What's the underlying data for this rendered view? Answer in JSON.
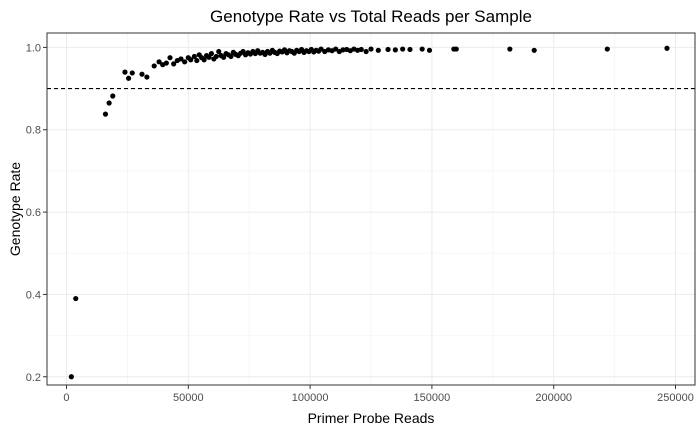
{
  "chart_data": {
    "type": "scatter",
    "title": "Genotype Rate vs Total Reads per Sample",
    "xlabel": "Primer Probe Reads",
    "ylabel": "Genotype Rate",
    "xlim": [
      -8000,
      258000
    ],
    "ylim": [
      0.18,
      1.035
    ],
    "xticks": [
      0,
      50000,
      100000,
      150000,
      200000,
      250000
    ],
    "xtick_labels": [
      "0",
      "50000",
      "100000",
      "150000",
      "200000",
      "250000"
    ],
    "yticks": [
      0.2,
      0.4,
      0.6,
      0.8,
      1.0
    ],
    "ytick_labels": [
      "0.2",
      "0.4",
      "0.6",
      "0.8",
      "1.0"
    ],
    "grid": true,
    "reference_line": {
      "y": 0.9,
      "style": "dashed"
    },
    "series": [
      {
        "points": [
          [
            2000,
            0.2
          ],
          [
            3800,
            0.39
          ],
          [
            16000,
            0.838
          ],
          [
            17500,
            0.865
          ],
          [
            19000,
            0.882
          ],
          [
            24000,
            0.94
          ],
          [
            25500,
            0.925
          ],
          [
            27000,
            0.938
          ],
          [
            31000,
            0.935
          ],
          [
            33000,
            0.928
          ],
          [
            36000,
            0.955
          ],
          [
            38000,
            0.965
          ],
          [
            39500,
            0.958
          ],
          [
            41000,
            0.962
          ],
          [
            42500,
            0.975
          ],
          [
            44000,
            0.96
          ],
          [
            45500,
            0.968
          ],
          [
            47000,
            0.972
          ],
          [
            48500,
            0.965
          ],
          [
            50000,
            0.975
          ],
          [
            51000,
            0.97
          ],
          [
            52500,
            0.978
          ],
          [
            53500,
            0.968
          ],
          [
            54500,
            0.982
          ],
          [
            55500,
            0.975
          ],
          [
            56500,
            0.97
          ],
          [
            57500,
            0.98
          ],
          [
            58500,
            0.976
          ],
          [
            59500,
            0.985
          ],
          [
            60500,
            0.972
          ],
          [
            61500,
            0.978
          ],
          [
            62500,
            0.99
          ],
          [
            63500,
            0.98
          ],
          [
            64500,
            0.976
          ],
          [
            65500,
            0.985
          ],
          [
            66500,
            0.982
          ],
          [
            67500,
            0.978
          ],
          [
            68500,
            0.988
          ],
          [
            69500,
            0.983
          ],
          [
            70500,
            0.98
          ],
          [
            71500,
            0.986
          ],
          [
            72500,
            0.99
          ],
          [
            73500,
            0.982
          ],
          [
            74500,
            0.987
          ],
          [
            75500,
            0.984
          ],
          [
            76500,
            0.99
          ],
          [
            77500,
            0.985
          ],
          [
            78500,
            0.992
          ],
          [
            79500,
            0.986
          ],
          [
            80500,
            0.988
          ],
          [
            81500,
            0.983
          ],
          [
            82500,
            0.99
          ],
          [
            83500,
            0.986
          ],
          [
            84500,
            0.993
          ],
          [
            85500,
            0.988
          ],
          [
            86500,
            0.985
          ],
          [
            87500,
            0.991
          ],
          [
            88500,
            0.989
          ],
          [
            89500,
            0.994
          ],
          [
            90500,
            0.987
          ],
          [
            91500,
            0.992
          ],
          [
            92500,
            0.99
          ],
          [
            93500,
            0.986
          ],
          [
            94500,
            0.993
          ],
          [
            95500,
            0.99
          ],
          [
            96500,
            0.995
          ],
          [
            97500,
            0.988
          ],
          [
            98500,
            0.992
          ],
          [
            99500,
            0.99
          ],
          [
            100500,
            0.995
          ],
          [
            101500,
            0.989
          ],
          [
            102500,
            0.993
          ],
          [
            103500,
            0.991
          ],
          [
            104500,
            0.996
          ],
          [
            106000,
            0.99
          ],
          [
            107500,
            0.994
          ],
          [
            109000,
            0.992
          ],
          [
            110500,
            0.996
          ],
          [
            112000,
            0.99
          ],
          [
            113500,
            0.994
          ],
          [
            115000,
            0.995
          ],
          [
            116500,
            0.992
          ],
          [
            118000,
            0.996
          ],
          [
            119500,
            0.993
          ],
          [
            121000,
            0.995
          ],
          [
            123000,
            0.99
          ],
          [
            125000,
            0.996
          ],
          [
            128000,
            0.993
          ],
          [
            132000,
            0.995
          ],
          [
            135000,
            0.994
          ],
          [
            138000,
            0.996
          ],
          [
            141000,
            0.995
          ],
          [
            146000,
            0.996
          ],
          [
            149000,
            0.993
          ],
          [
            159000,
            0.996
          ],
          [
            160000,
            0.996
          ],
          [
            182000,
            0.996
          ],
          [
            192000,
            0.993
          ],
          [
            222000,
            0.996
          ],
          [
            246500,
            0.998
          ]
        ]
      }
    ]
  }
}
